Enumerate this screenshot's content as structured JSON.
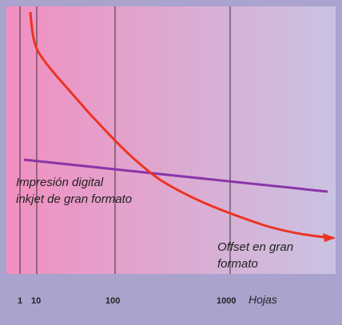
{
  "labels": {
    "digital": [
      "Impresión digital",
      "inkjet de gran formato"
    ],
    "offset": [
      "Offset en gran",
      "formato"
    ]
  },
  "axis": {
    "ticks": [
      "1",
      "10",
      "100",
      "1000"
    ],
    "unit": "Hojas"
  }
}
